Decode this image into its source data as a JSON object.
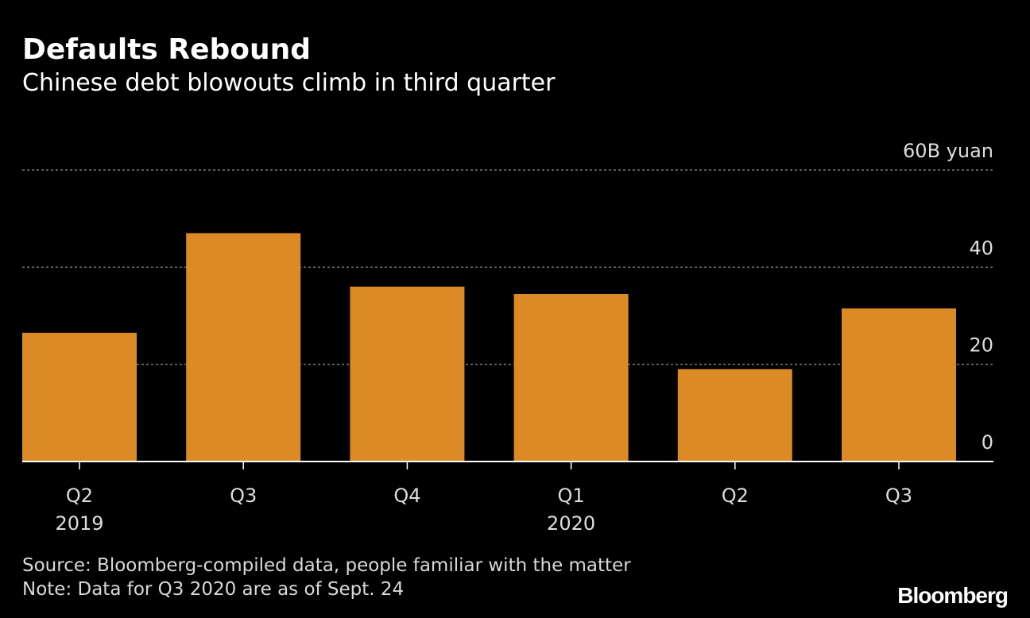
{
  "header": {
    "title": "Defaults Rebound",
    "subtitle": "Chinese debt blowouts climb in third quarter"
  },
  "footer": {
    "source": "Source: Bloomberg-compiled data, people familiar with the matter",
    "note": "Note: Data for Q3 2020 are as of Sept. 24",
    "brand": "Bloomberg"
  },
  "colors": {
    "bar": "#dc8a26",
    "grid": "#7a7a7a",
    "axis": "#ffffff",
    "background": "#000000",
    "text": "#ffffff",
    "tick_text": "#dddddd"
  },
  "chart_data": {
    "type": "bar",
    "title": "Defaults Rebound",
    "subtitle": "Chinese debt blowouts climb in third quarter",
    "categories": [
      "Q2",
      "Q3",
      "Q4",
      "Q1",
      "Q2",
      "Q3"
    ],
    "year_labels": [
      "2019",
      "",
      "",
      "2020",
      "",
      ""
    ],
    "values": [
      26.5,
      47,
      36,
      34.5,
      19,
      31.5
    ],
    "ylim": [
      0,
      60
    ],
    "yticks": [
      0,
      20,
      40,
      60
    ],
    "ytick_labels": [
      "0",
      "20",
      "40",
      "60B yuan"
    ],
    "yunit": "B yuan",
    "xlabel": "",
    "ylabel": "",
    "grid": true,
    "axis_side": "right"
  }
}
